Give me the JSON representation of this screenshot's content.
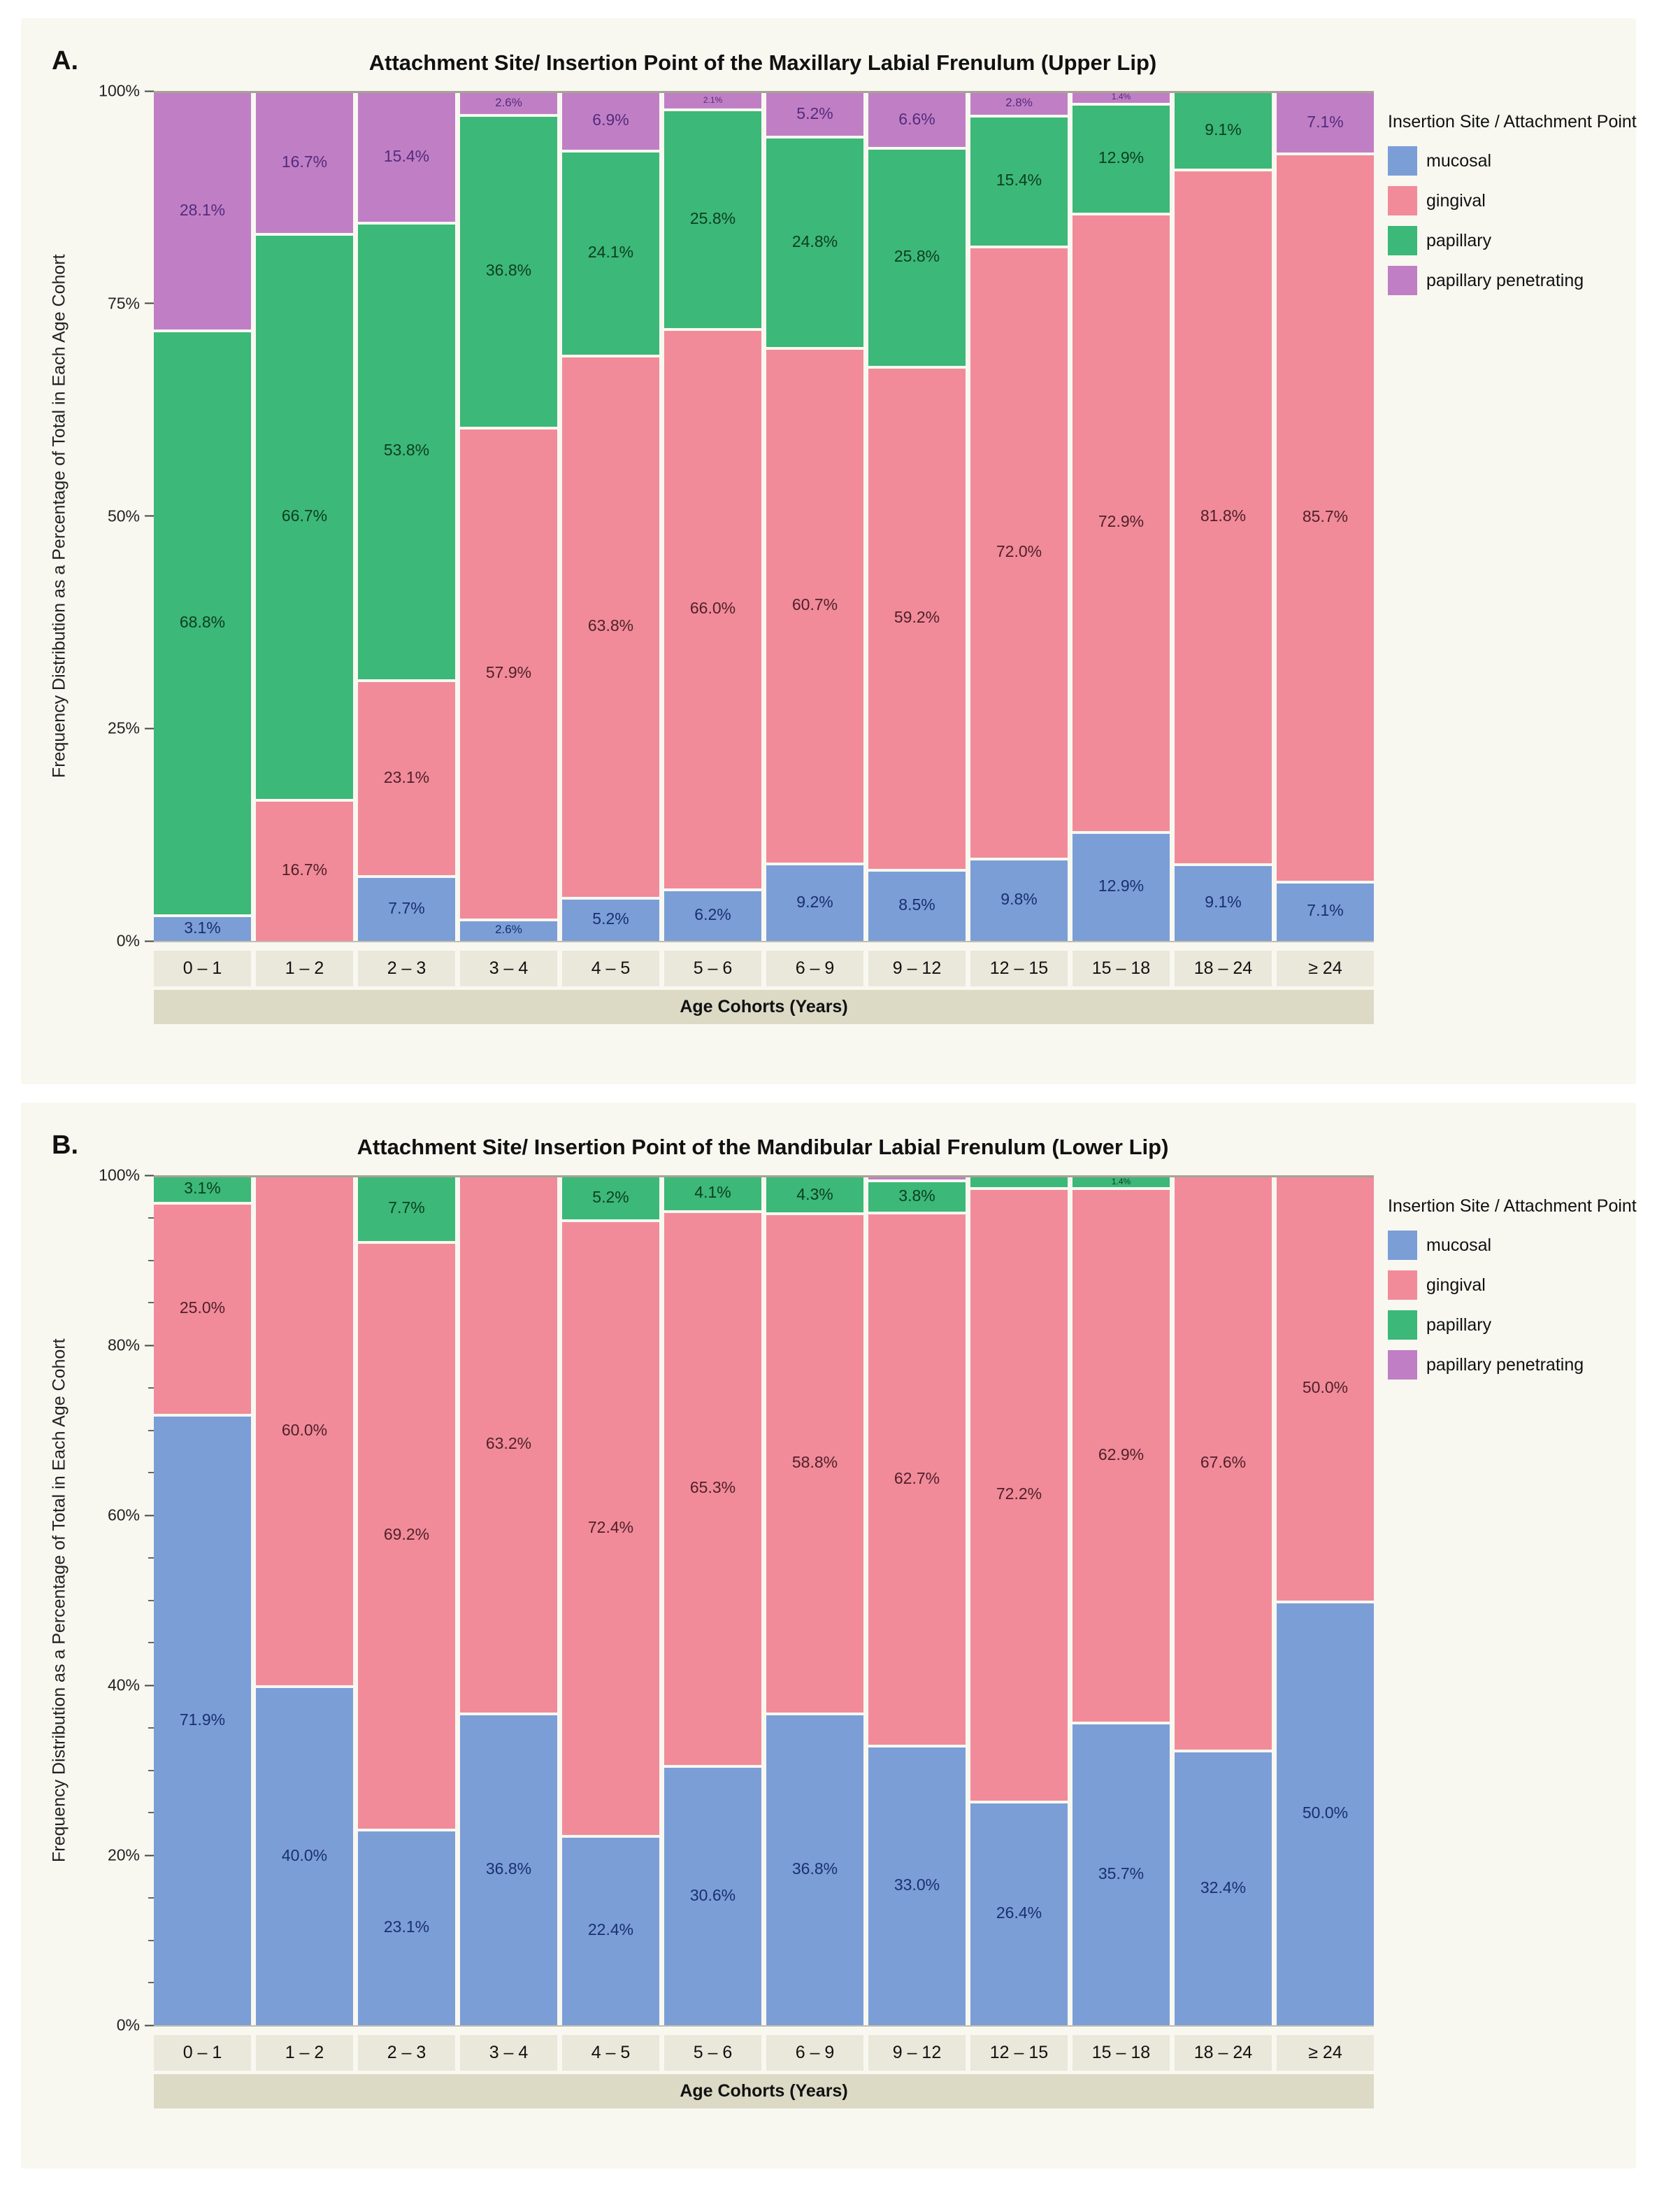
{
  "legend": {
    "title": "Insertion Site / Attachment Point",
    "items": [
      {
        "label": "mucosal",
        "color": "#7b9ed7"
      },
      {
        "label": "gingival",
        "color": "#f18b99"
      },
      {
        "label": "papillary",
        "color": "#3cb878"
      },
      {
        "label": "papillary penetrating",
        "color": "#c07fc5"
      }
    ]
  },
  "chart_data": [
    {
      "type": "bar",
      "stacked": true,
      "units": "percent",
      "panel_label": "A.",
      "title": "Attachment Site/ Insertion Point of the Maxillary Labial Frenulum (Upper Lip)",
      "xlabel": "Age Cohorts (Years)",
      "ylabel": "Frequency Distribution as a Percentage of Total in Each Age Cohort",
      "ylim": [
        0,
        100
      ],
      "grid": false,
      "legend_position": "right",
      "yticks": [
        {
          "value": 0,
          "label": "0%"
        },
        {
          "value": 25,
          "label": "25%"
        },
        {
          "value": 50,
          "label": "50%"
        },
        {
          "value": 75,
          "label": "75%"
        },
        {
          "value": 100,
          "label": "100%"
        }
      ],
      "minor_tick_step": 0,
      "categories": [
        "0 – 1",
        "1 – 2",
        "2 – 3",
        "3 – 4",
        "4 – 5",
        "5 – 6",
        "6 – 9",
        "9 – 12",
        "12 – 15",
        "15 – 18",
        "18 – 24",
        "≥ 24"
      ],
      "series": [
        {
          "name": "mucosal",
          "color": "#7b9ed7",
          "label_color": "#1b2f6e",
          "values": [
            3.1,
            0,
            7.7,
            2.6,
            5.2,
            6.2,
            9.2,
            8.5,
            9.8,
            12.9,
            9.1,
            7.1
          ],
          "labels": [
            "3.1%",
            "",
            "7.7%",
            "2.6%",
            "5.2%",
            "6.2%",
            "9.2%",
            "8.5%",
            "9.8%",
            "12.9%",
            "9.1%",
            "7.1%"
          ]
        },
        {
          "name": "gingival",
          "color": "#f18b99",
          "label_color": "#4f1f29",
          "values": [
            0,
            16.7,
            23.1,
            57.9,
            63.8,
            66.0,
            60.7,
            59.2,
            72.0,
            72.9,
            81.8,
            85.7
          ],
          "labels": [
            "",
            "16.7%",
            "23.1%",
            "57.9%",
            "63.8%",
            "66.0%",
            "60.7%",
            "59.2%",
            "72.0%",
            "72.9%",
            "81.8%",
            "85.7%"
          ]
        },
        {
          "name": "papillary",
          "color": "#3cb878",
          "label_color": "#0c3d22",
          "values": [
            68.8,
            66.7,
            53.8,
            36.8,
            24.1,
            25.8,
            24.8,
            25.8,
            15.4,
            12.9,
            9.1,
            0
          ],
          "labels": [
            "68.8%",
            "66.7%",
            "53.8%",
            "36.8%",
            "24.1%",
            "25.8%",
            "24.8%",
            "25.8%",
            "15.4%",
            "12.9%",
            "9.1%",
            ""
          ]
        },
        {
          "name": "papillary penetrating",
          "color": "#c07fc5",
          "label_color": "#542a7d",
          "values": [
            28.1,
            16.7,
            15.4,
            2.6,
            6.9,
            2.1,
            5.2,
            6.6,
            2.8,
            1.4,
            0,
            7.1
          ],
          "labels": [
            "28.1%",
            "16.7%",
            "15.4%",
            "2.6%",
            "6.9%",
            "2.1%",
            "5.2%",
            "6.6%",
            "2.8%",
            "1.4%",
            "",
            "7.1%"
          ]
        }
      ]
    },
    {
      "type": "bar",
      "stacked": true,
      "units": "percent",
      "panel_label": "B.",
      "title": "Attachment Site/ Insertion Point of the Mandibular Labial Frenulum (Lower Lip)",
      "xlabel": "Age Cohorts (Years)",
      "ylabel": "Frequency Distribution as a Percentage of Total in Each Age Cohort",
      "ylim": [
        0,
        100
      ],
      "grid": false,
      "legend_position": "right",
      "yticks": [
        {
          "value": 0,
          "label": "0%"
        },
        {
          "value": 20,
          "label": "20%"
        },
        {
          "value": 40,
          "label": "40%"
        },
        {
          "value": 60,
          "label": "60%"
        },
        {
          "value": 80,
          "label": "80%"
        },
        {
          "value": 100,
          "label": "100%"
        }
      ],
      "minor_tick_step": 5,
      "categories": [
        "0 – 1",
        "1 – 2",
        "2 – 3",
        "3 – 4",
        "4 – 5",
        "5 – 6",
        "6 – 9",
        "9 – 12",
        "12 – 15",
        "15 – 18",
        "18 – 24",
        "≥ 24"
      ],
      "series": [
        {
          "name": "mucosal",
          "color": "#7b9ed7",
          "label_color": "#1b2f6e",
          "values": [
            71.9,
            40.0,
            23.1,
            36.8,
            22.4,
            30.6,
            36.8,
            33.0,
            26.4,
            35.7,
            32.4,
            50.0
          ],
          "labels": [
            "71.9%",
            "40.0%",
            "23.1%",
            "36.8%",
            "22.4%",
            "30.6%",
            "36.8%",
            "33.0%",
            "26.4%",
            "35.7%",
            "32.4%",
            "50.0%"
          ]
        },
        {
          "name": "gingival",
          "color": "#f18b99",
          "label_color": "#4f1f29",
          "values": [
            25.0,
            60.0,
            69.2,
            63.2,
            72.4,
            65.3,
            58.8,
            62.7,
            72.2,
            62.9,
            67.6,
            50.0
          ],
          "labels": [
            "25.0%",
            "60.0%",
            "69.2%",
            "63.2%",
            "72.4%",
            "65.3%",
            "58.8%",
            "62.7%",
            "72.2%",
            "62.9%",
            "67.6%",
            "50.0%"
          ]
        },
        {
          "name": "papillary",
          "color": "#3cb878",
          "label_color": "#0c3d22",
          "values": [
            3.1,
            0,
            7.7,
            0,
            5.2,
            4.1,
            4.3,
            3.8,
            1.4,
            1.4,
            0,
            0
          ],
          "labels": [
            "3.1%",
            "",
            "7.7%",
            "",
            "5.2%",
            "4.1%",
            "4.3%",
            "3.8%",
            "",
            "1.4%",
            "",
            ""
          ]
        },
        {
          "name": "papillary penetrating",
          "color": "#c07fc5",
          "label_color": "#542a7d",
          "values": [
            0,
            0,
            0,
            0,
            0,
            0,
            0,
            0.5,
            0,
            0,
            0,
            0
          ],
          "labels": [
            "",
            "",
            "",
            "",
            "",
            "",
            "",
            "",
            "",
            "",
            "",
            ""
          ]
        }
      ]
    }
  ]
}
